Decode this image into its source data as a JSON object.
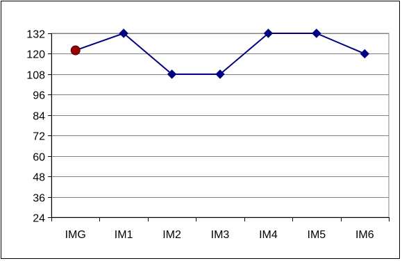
{
  "chart_data": {
    "type": "line",
    "title": "",
    "xlabel": "",
    "ylabel": "",
    "categories": [
      "IMG",
      "IM1",
      "IM2",
      "IM3",
      "IM4",
      "IM5",
      "IM6"
    ],
    "series": [
      {
        "values": [
          122,
          132,
          108,
          108,
          132,
          132,
          120
        ],
        "color": "#000080",
        "marker": "diamond",
        "first_point_marker": "circle",
        "first_point_color": "#990000"
      }
    ],
    "ylim": [
      24,
      132
    ],
    "yticks": [
      24,
      36,
      48,
      60,
      72,
      84,
      96,
      108,
      120,
      132
    ],
    "grid": true,
    "legend": "none",
    "plot_background": "#ffffff",
    "grid_color": "#808080"
  }
}
